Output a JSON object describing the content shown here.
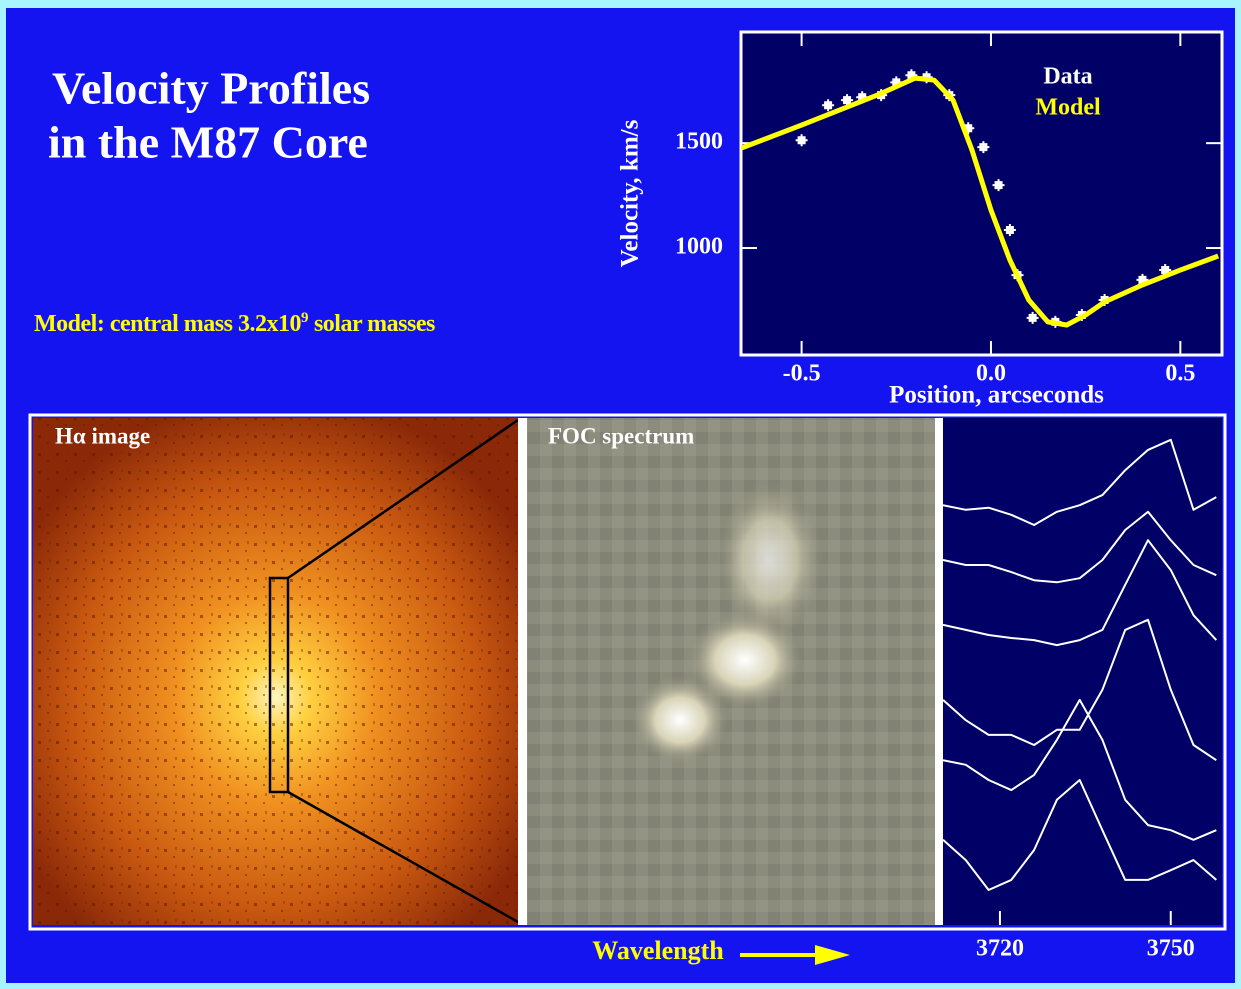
{
  "title_lines": [
    "Velocity Profiles",
    "in the M87 Core"
  ],
  "annotation": {
    "text": "Model: central mass 3.2x10",
    "superscript": "9",
    "text_after": "solar masses"
  },
  "panels": {
    "halpha": "Hα image",
    "foc": "FOC spectrum"
  },
  "chart_data": [
    {
      "type": "line",
      "xlabel": "Position, arcseconds",
      "ylabel": "Velocity, km/s",
      "xlim": [
        -0.66,
        0.61
      ],
      "ylim": [
        490,
        2030
      ],
      "xticks": [
        -0.5,
        {
          "value": 0,
          "label": "0.0"
        },
        0.5
      ],
      "yticks": [
        1000,
        1500
      ],
      "series": [
        {
          "name": "Data",
          "color": "#ffffff",
          "mode": "markers",
          "x": [
            -0.5,
            -0.43,
            -0.38,
            -0.34,
            -0.29,
            -0.25,
            -0.21,
            -0.17,
            -0.11,
            -0.06,
            -0.02,
            0.02,
            0.05,
            0.07,
            0.11,
            0.17,
            0.24,
            0.3,
            0.4,
            0.46
          ],
          "values": [
            1514,
            1681,
            1705,
            1719,
            1729,
            1790,
            1824,
            1814,
            1729,
            1571,
            1481,
            1300,
            1086,
            871,
            667,
            648,
            681,
            752,
            848,
            895
          ]
        },
        {
          "name": "Model",
          "color": "#ffff00",
          "mode": "line",
          "x": [
            -0.66,
            -0.5,
            -0.3,
            -0.2,
            -0.15,
            -0.1,
            -0.05,
            0.0,
            0.05,
            0.1,
            0.15,
            0.2,
            0.25,
            0.3,
            0.4,
            0.5,
            0.6
          ],
          "values": [
            1476,
            1586,
            1729,
            1810,
            1800,
            1705,
            1467,
            1181,
            943,
            752,
            648,
            633,
            681,
            743,
            824,
            895,
            962
          ]
        }
      ]
    },
    {
      "type": "line",
      "xlabel": "Wavelength",
      "xlim": [
        3710,
        3759
      ],
      "ylim": [
        0,
        10
      ],
      "xticks": [
        3720,
        3750
      ],
      "x": [
        3710,
        3714,
        3718,
        3722,
        3726,
        3730,
        3734,
        3738,
        3742,
        3746,
        3750,
        3754,
        3758
      ],
      "series": [
        {
          "color": "#ffffff",
          "values": [
            8.28,
            8.19,
            8.23,
            8.09,
            7.89,
            8.15,
            8.28,
            8.48,
            8.97,
            9.37,
            9.57,
            8.19,
            8.44
          ]
        },
        {
          "color": "#ffffff",
          "values": [
            7.2,
            7.1,
            7.1,
            6.96,
            6.8,
            6.76,
            6.84,
            7.2,
            7.79,
            8.15,
            7.59,
            7.1,
            6.9
          ]
        },
        {
          "color": "#ffffff",
          "values": [
            5.92,
            5.82,
            5.72,
            5.66,
            5.62,
            5.52,
            5.62,
            5.82,
            6.71,
            7.59,
            7.0,
            6.11,
            5.62
          ]
        },
        {
          "color": "#ffffff",
          "values": [
            4.44,
            4.04,
            3.75,
            3.75,
            3.55,
            3.85,
            3.85,
            4.64,
            5.82,
            6.02,
            4.64,
            3.55,
            3.25
          ]
        },
        {
          "color": "#ffffff",
          "values": [
            3.25,
            3.16,
            2.86,
            2.66,
            2.96,
            3.65,
            4.44,
            3.65,
            2.47,
            1.97,
            1.87,
            1.68,
            1.87
          ]
        },
        {
          "color": "#ffffff",
          "values": [
            1.68,
            1.28,
            0.69,
            0.89,
            1.48,
            2.47,
            2.86,
            1.87,
            0.89,
            0.89,
            1.08,
            1.28,
            0.89
          ]
        }
      ]
    }
  ]
}
